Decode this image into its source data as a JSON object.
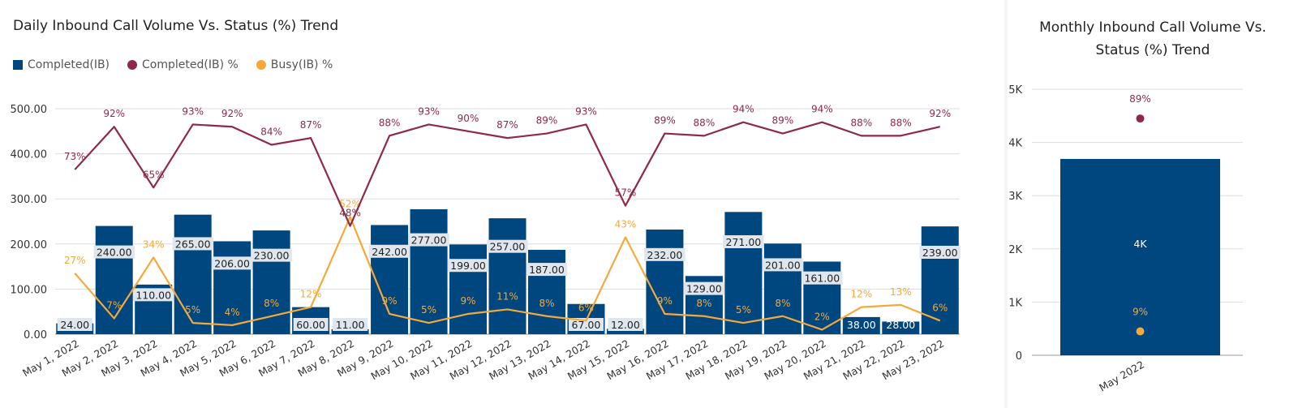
{
  "left_chart_title": "Daily Inbound Call Volume Vs. Status (%) Trend",
  "right_chart_title_line1": "Monthly Inbound Call Volume Vs.",
  "right_chart_title_line2": "Status (%) Trend",
  "legend": [
    {
      "label": "Completed(IB)",
      "color": "#00467f",
      "shape": "square"
    },
    {
      "label": "Completed(IB) %",
      "color": "#8e2a48",
      "shape": "circle"
    },
    {
      "label": "Busy(IB) %",
      "color": "#f5a93b",
      "shape": "circle"
    }
  ],
  "chart_data": [
    {
      "type": "bar",
      "title": "Daily Inbound Call Volume Vs. Status (%) Trend",
      "ylim": [
        0,
        500
      ],
      "yticks": [
        "0.00",
        "100.00",
        "200.00",
        "300.00",
        "400.00",
        "500.00"
      ],
      "ytick_values": [
        0,
        100,
        200,
        300,
        400,
        500
      ],
      "categories": [
        "May 1, 2022",
        "May 2, 2022",
        "May 3, 2022",
        "May 4, 2022",
        "May 5, 2022",
        "May 6, 2022",
        "May 7, 2022",
        "May 8, 2022",
        "May 9, 2022",
        "May 10, 2022",
        "May 11, 2022",
        "May 12, 2022",
        "May 13, 2022",
        "May 14, 2022",
        "May 15, 2022",
        "May 16, 2022",
        "May 17, 2022",
        "May 18, 2022",
        "May 19, 2022",
        "May 20, 2022",
        "May 21, 2022",
        "May 22, 2022",
        "May 23, 2022"
      ],
      "series": [
        {
          "name": "Completed(IB)",
          "kind": "bar",
          "color": "#00467f",
          "values": [
            24,
            240,
            110,
            265,
            206,
            230,
            60,
            11,
            242,
            277,
            199,
            257,
            187,
            67,
            12,
            232,
            129,
            271,
            201,
            161,
            38,
            28,
            239
          ],
          "labels": [
            "24.00",
            "240.00",
            "110.00",
            "265.00",
            "206.00",
            "230.00",
            "60.00",
            "11.00",
            "242.00",
            "277.00",
            "199.00",
            "257.00",
            "187.00",
            "67.00",
            "12.00",
            "232.00",
            "129.00",
            "271.00",
            "201.00",
            "161.00",
            "38.00",
            "28.00",
            "239.00"
          ]
        },
        {
          "name": "Completed(IB) %",
          "kind": "line",
          "color": "#8e2a48",
          "values": [
            73,
            92,
            65,
            93,
            92,
            84,
            87,
            48,
            88,
            93,
            90,
            87,
            89,
            93,
            57,
            89,
            88,
            94,
            89,
            94,
            88,
            88,
            92
          ],
          "labels": [
            "73%",
            "92%",
            "65%",
            "93%",
            "92%",
            "84%",
            "87%",
            "48%",
            "88%",
            "93%",
            "90%",
            "87%",
            "89%",
            "93%",
            "57%",
            "89%",
            "88%",
            "94%",
            "89%",
            "94%",
            "88%",
            "88%",
            "92%"
          ]
        },
        {
          "name": "Busy(IB) %",
          "kind": "line",
          "color": "#f5a93b",
          "values": [
            27,
            7,
            34,
            5,
            4,
            8,
            12,
            52,
            9,
            5,
            9,
            11,
            8,
            6,
            43,
            9,
            8,
            5,
            8,
            2,
            12,
            13,
            6
          ],
          "labels": [
            "27%",
            "7%",
            "34%",
            "5%",
            "4%",
            "8%",
            "12%",
            "52%",
            "9%",
            "5%",
            "9%",
            "11%",
            "8%",
            "6%",
            "43%",
            "9%",
            "8%",
            "5%",
            "8%",
            "2%",
            "12%",
            "13%",
            "6%"
          ]
        }
      ],
      "legend": "top-left"
    },
    {
      "type": "bar",
      "title": "Monthly Inbound Call Volume Vs. Status (%) Trend",
      "ylim": [
        0,
        5000
      ],
      "yticks": [
        "0",
        "1K",
        "2K",
        "3K",
        "4K",
        "5K"
      ],
      "ytick_values": [
        0,
        1000,
        2000,
        3000,
        4000,
        5000
      ],
      "categories": [
        "May 2022"
      ],
      "series": [
        {
          "name": "Completed(IB)",
          "kind": "bar",
          "color": "#00467f",
          "values": [
            3690
          ],
          "labels": [
            "4K"
          ]
        },
        {
          "name": "Completed(IB) %",
          "kind": "point",
          "color": "#8e2a48",
          "values": [
            89
          ],
          "labels": [
            "89%"
          ]
        },
        {
          "name": "Busy(IB) %",
          "kind": "point",
          "color": "#f5a93b",
          "values": [
            9
          ],
          "labels": [
            "9%"
          ]
        }
      ]
    }
  ]
}
